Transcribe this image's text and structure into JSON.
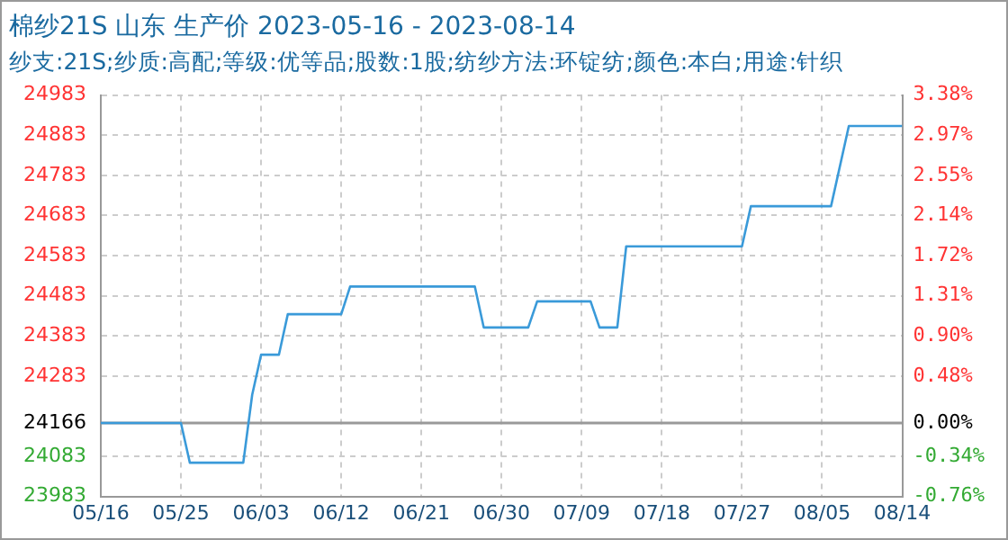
{
  "chart_data": {
    "type": "line",
    "title": "棉纱21S 山东 生产价 2023-05-16 - 2023-08-14",
    "subtitle": "纱支:21S;纱质:高配;等级:优等品;股数:1股;纺纱方法:环锭纺;颜色:本白;用途:针织",
    "x": [
      "2023-05-16",
      "2023-05-25",
      "2023-05-26",
      "2023-06-01",
      "2023-06-02",
      "2023-06-03",
      "2023-06-05",
      "2023-06-06",
      "2023-06-12",
      "2023-06-13",
      "2023-06-27",
      "2023-06-28",
      "2023-07-03",
      "2023-07-04",
      "2023-07-10",
      "2023-07-11",
      "2023-07-13",
      "2023-07-14",
      "2023-07-27",
      "2023-07-28",
      "2023-08-06",
      "2023-08-08",
      "2023-08-14"
    ],
    "series": [
      {
        "color": "#3a9ad9",
        "values": [
          24166,
          24166,
          24067,
          24067,
          24236,
          24336,
          24336,
          24437,
          24437,
          24506,
          24506,
          24404,
          24404,
          24469,
          24469,
          24404,
          24404,
          24606,
          24606,
          24706,
          24706,
          24906,
          24906
        ]
      }
    ],
    "xlim": [
      "2023-05-16",
      "2023-08-14"
    ],
    "xticks": [
      {
        "value": "2023-05-16",
        "label": "05/16"
      },
      {
        "value": "2023-05-25",
        "label": "05/25"
      },
      {
        "value": "2023-06-03",
        "label": "06/03"
      },
      {
        "value": "2023-06-12",
        "label": "06/12"
      },
      {
        "value": "2023-06-21",
        "label": "06/21"
      },
      {
        "value": "2023-06-30",
        "label": "06/30"
      },
      {
        "value": "2023-07-09",
        "label": "07/09"
      },
      {
        "value": "2023-07-18",
        "label": "07/18"
      },
      {
        "value": "2023-07-27",
        "label": "07/27"
      },
      {
        "value": "2023-08-05",
        "label": "08/05"
      },
      {
        "value": "2023-08-14",
        "label": "08/14"
      }
    ],
    "ylim": [
      23983,
      24983
    ],
    "yticks": [
      23983,
      24083,
      24166,
      24283,
      24383,
      24483,
      24583,
      24683,
      24783,
      24883,
      24983
    ],
    "y2lim": [
      -0.757,
      3.381
    ],
    "y2ticks": [
      {
        "value": -0.757,
        "label": "-0.76%"
      },
      {
        "value": -0.343,
        "label": "-0.34%"
      },
      {
        "value": 0,
        "label": "0.00%"
      },
      {
        "value": 0.484,
        "label": "0.48%"
      },
      {
        "value": 0.898,
        "label": "0.90%"
      },
      {
        "value": 1.312,
        "label": "1.31%"
      },
      {
        "value": 1.72,
        "label": "1.72%"
      },
      {
        "value": 2.139,
        "label": "2.14%"
      },
      {
        "value": 2.553,
        "label": "2.55%"
      },
      {
        "value": 2.967,
        "label": "2.97%"
      },
      {
        "value": 3.381,
        "label": "3.38%"
      }
    ],
    "ref_lines": [
      {
        "axis": "y",
        "value": 24166,
        "color": "#999999"
      }
    ],
    "grid": true,
    "legend": false,
    "marker": "none",
    "line_style": "solid"
  }
}
